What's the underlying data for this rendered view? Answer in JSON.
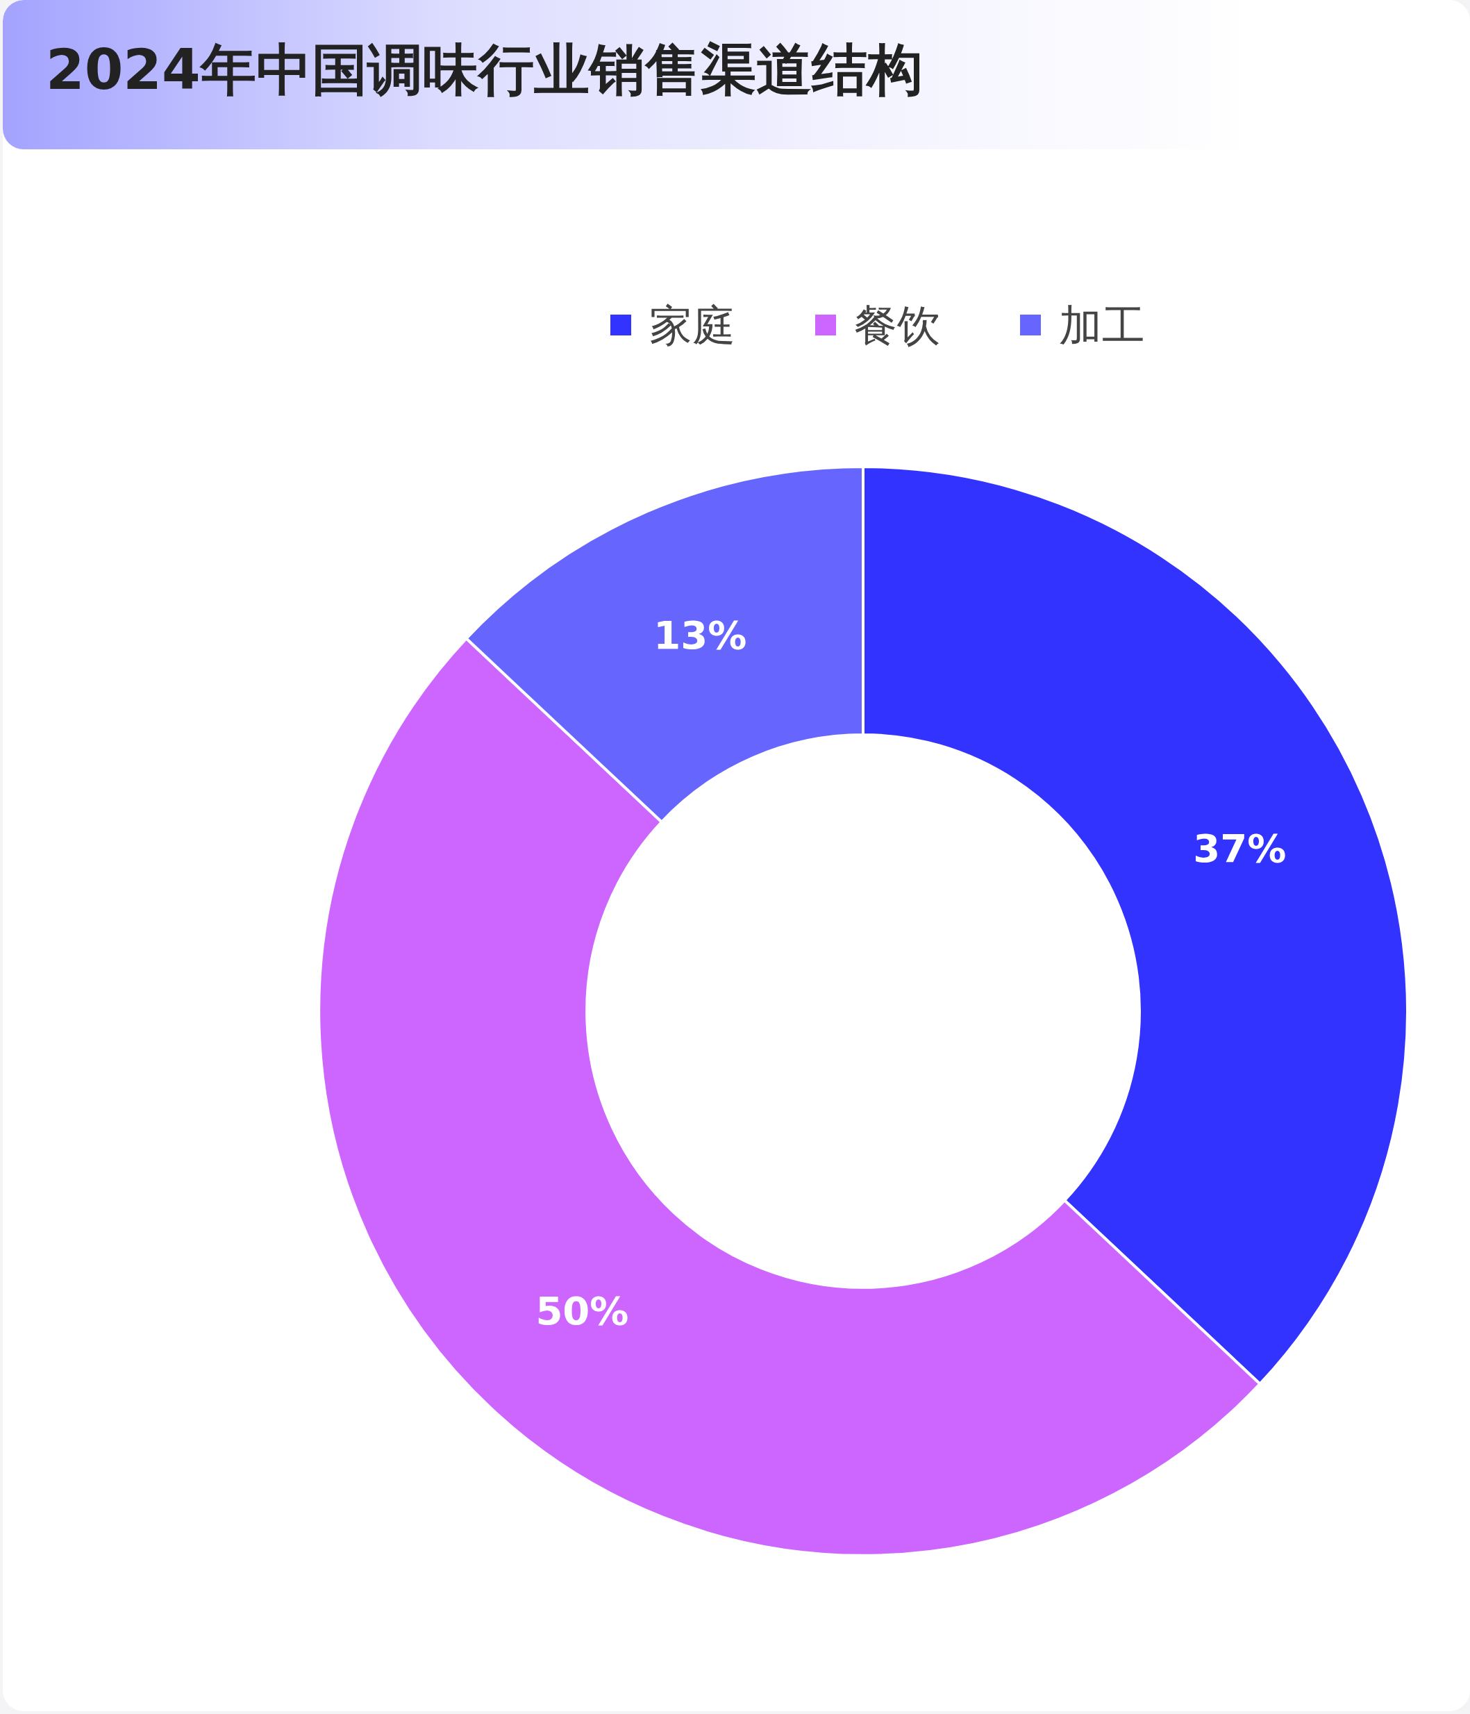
{
  "chart_data": {
    "type": "donut",
    "title": "2024年中国调味行业销售渠道结构",
    "categories": [
      "家庭",
      "餐饮",
      "加工"
    ],
    "values": [
      37,
      50,
      13
    ],
    "colors": [
      "#3333ff",
      "#cc66ff",
      "#6666ff"
    ],
    "value_labels": [
      "37%",
      "50%",
      "13%"
    ],
    "legend": "top"
  }
}
